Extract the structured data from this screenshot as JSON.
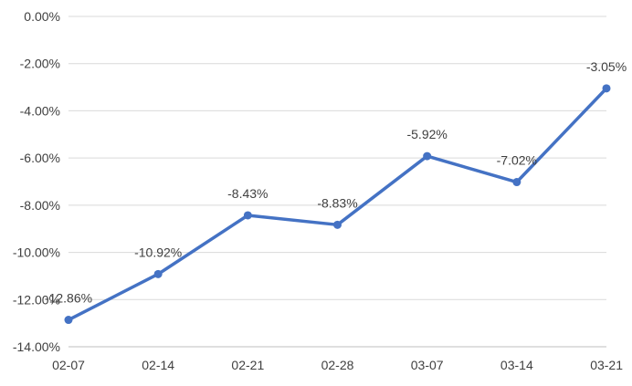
{
  "chart_data": {
    "type": "line",
    "title": "",
    "xlabel": "",
    "ylabel": "",
    "categories": [
      "02-07",
      "02-14",
      "02-21",
      "02-28",
      "03-07",
      "03-14",
      "03-21"
    ],
    "series": [
      {
        "values": [
          -12.86,
          -10.92,
          -8.43,
          -8.83,
          -5.92,
          -7.02,
          -3.05
        ],
        "data_labels": [
          "-12.86%",
          "-10.92%",
          "-8.43%",
          "-8.83%",
          "-5.92%",
          "-7.02%",
          "-3.05%"
        ],
        "color": "#4472c4"
      }
    ],
    "ylim": [
      -14,
      0
    ],
    "y_ticks": [
      0,
      -2,
      -4,
      -6,
      -8,
      -10,
      -12,
      -14
    ],
    "y_tick_labels": [
      "0.00%",
      "-2.00%",
      "-4.00%",
      "-6.00%",
      "-8.00%",
      "-10.00%",
      "-12.00%",
      "-14.00%"
    ],
    "grid": true,
    "legend": "none"
  }
}
